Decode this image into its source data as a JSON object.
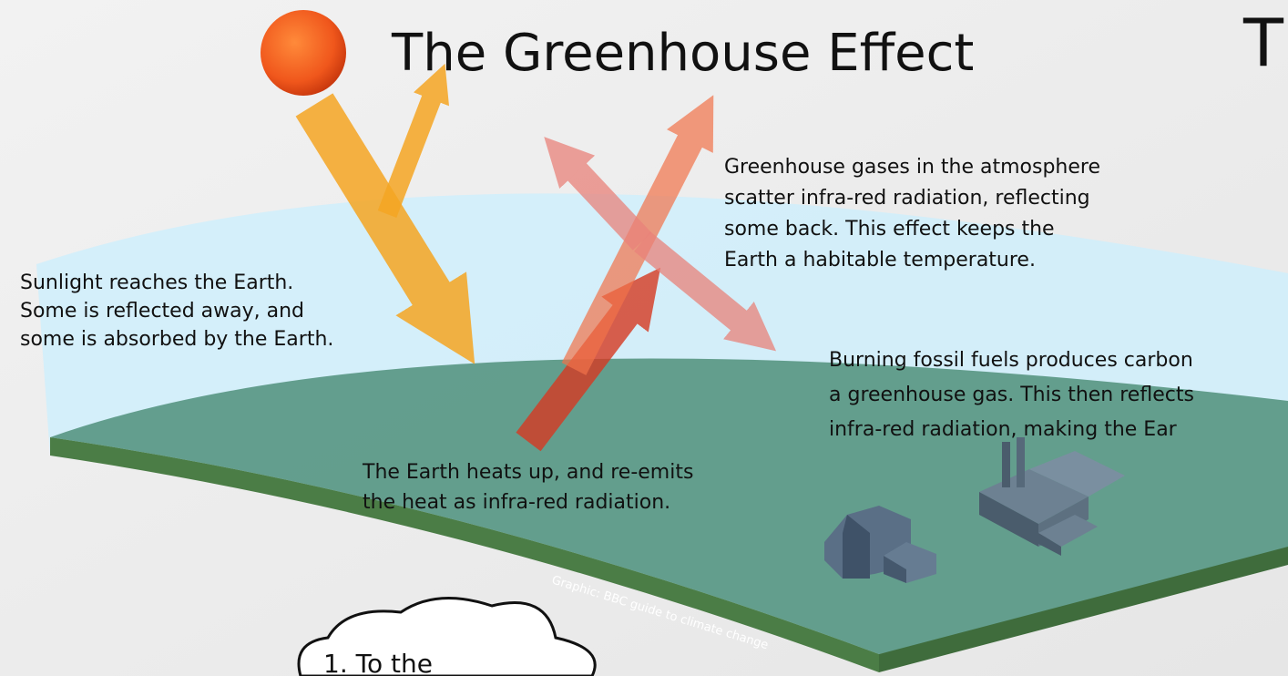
{
  "header": {
    "title": "The Greenhouse Effect",
    "edge_title": "T"
  },
  "captions": [
    {
      "lines": [
        "Sunlight reaches the Earth.",
        "Some is reflected away, and",
        "some is absorbed by the Earth."
      ]
    },
    {
      "lines": [
        "Greenhouse gases in the atmosphere",
        "scatter infra-red radiation, reflecting",
        "some back. This effect keeps the",
        "Earth a habitable temperature."
      ]
    },
    {
      "lines": [
        "Burning fossil fuels produces carbon",
        "a greenhouse gas. This then reflects",
        "infra-red radiation, making the Ear"
      ]
    },
    {
      "lines": [
        "The Earth heats up, and re-emits",
        "the heat as infra-red radiation."
      ]
    }
  ],
  "credit": "Graphic: BBC guide to climate change",
  "cloud": {
    "text": "1. To the"
  }
}
